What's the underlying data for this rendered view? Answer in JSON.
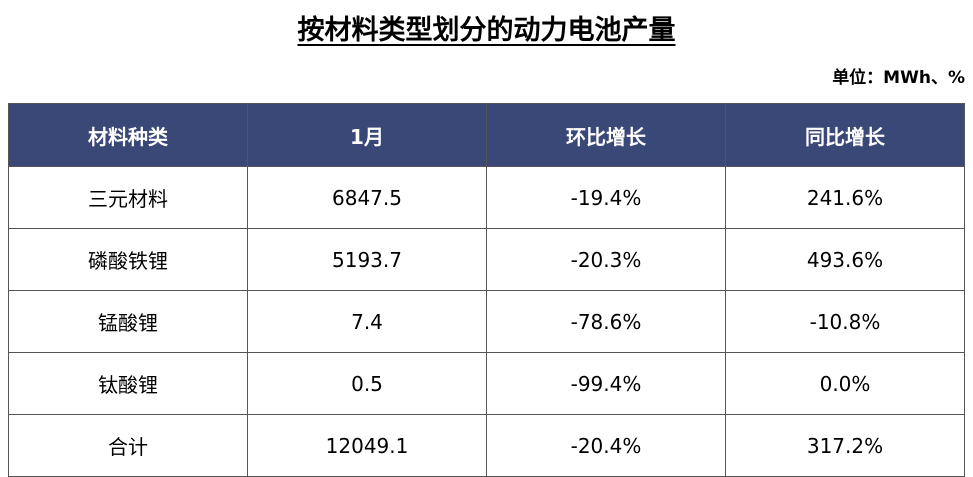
{
  "header": {
    "title": "按材料类型划分的动力电池产量",
    "unit": "单位：MWh、%"
  },
  "table": {
    "columns": [
      "材料种类",
      "1月",
      "环比增长",
      "同比增长"
    ],
    "rows": [
      [
        "三元材料",
        "6847.5",
        "-19.4%",
        "241.6%"
      ],
      [
        "磷酸铁锂",
        "5193.7",
        "-20.3%",
        "493.6%"
      ],
      [
        "锰酸锂",
        "7.4",
        "-78.6%",
        "-10.8%"
      ],
      [
        "钛酸锂",
        "0.5",
        "-99.4%",
        "0.0%"
      ],
      [
        "合计",
        "12049.1",
        "-20.4%",
        "317.2%"
      ]
    ]
  }
}
